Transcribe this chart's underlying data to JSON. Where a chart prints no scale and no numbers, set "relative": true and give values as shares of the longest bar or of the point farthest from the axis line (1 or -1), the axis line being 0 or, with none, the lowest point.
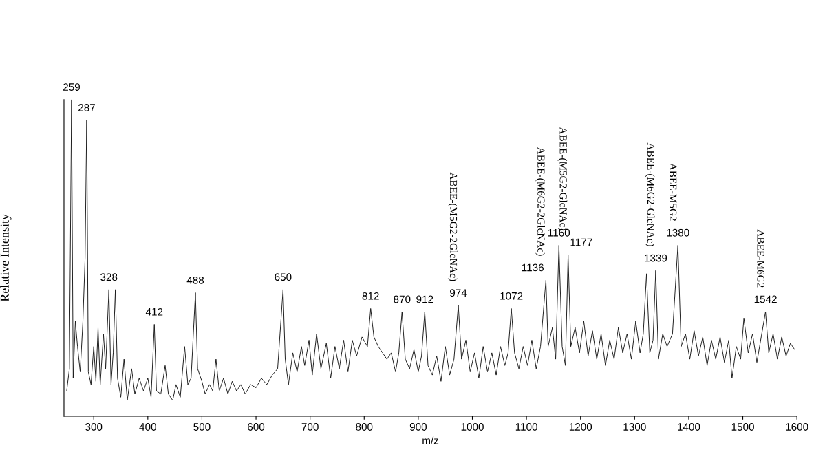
{
  "chart_data": {
    "type": "line",
    "relative": true,
    "xlabel": "m/z",
    "ylabel": "Relative Intensity",
    "xlim": [
      245,
      1600
    ],
    "xticks": [
      300,
      400,
      500,
      600,
      700,
      800,
      900,
      1000,
      1100,
      1200,
      1300,
      1400,
      1500,
      1600
    ],
    "tick_labels": "x",
    "grid": false,
    "legend": false,
    "marker": "none",
    "line_style": "solid",
    "series": [
      {
        "color": "#1a1a1a",
        "x": [
          250,
          255,
          259,
          262,
          266,
          270,
          275,
          280,
          284,
          287,
          290,
          295,
          300,
          304,
          308,
          312,
          318,
          322,
          328,
          332,
          336,
          340,
          344,
          350,
          356,
          362,
          370,
          376,
          384,
          392,
          400,
          406,
          412,
          416,
          424,
          432,
          438,
          446,
          452,
          460,
          468,
          474,
          480,
          488,
          492,
          500,
          506,
          514,
          520,
          526,
          532,
          540,
          548,
          556,
          564,
          572,
          580,
          590,
          600,
          610,
          620,
          630,
          640,
          650,
          654,
          660,
          668,
          676,
          684,
          690,
          698,
          704,
          712,
          720,
          730,
          738,
          746,
          754,
          762,
          770,
          778,
          786,
          796,
          806,
          812,
          818,
          826,
          834,
          842,
          850,
          858,
          864,
          870,
          876,
          884,
          892,
          900,
          906,
          912,
          918,
          926,
          934,
          942,
          950,
          958,
          966,
          974,
          980,
          988,
          996,
          1004,
          1012,
          1020,
          1028,
          1036,
          1044,
          1052,
          1060,
          1066,
          1072,
          1078,
          1086,
          1094,
          1102,
          1110,
          1118,
          1126,
          1136,
          1140,
          1148,
          1154,
          1160,
          1166,
          1172,
          1177,
          1182,
          1190,
          1198,
          1206,
          1214,
          1222,
          1230,
          1238,
          1246,
          1254,
          1262,
          1270,
          1278,
          1286,
          1294,
          1302,
          1310,
          1316,
          1322,
          1328,
          1334,
          1339,
          1344,
          1352,
          1360,
          1370,
          1380,
          1386,
          1394,
          1402,
          1410,
          1418,
          1426,
          1434,
          1442,
          1450,
          1458,
          1466,
          1474,
          1480,
          1488,
          1496,
          1502,
          1510,
          1518,
          1526,
          1534,
          1542,
          1548,
          1556,
          1564,
          1572,
          1580,
          1588,
          1596
        ],
        "values": [
          0.08,
          0.15,
          1.0,
          0.12,
          0.3,
          0.22,
          0.14,
          0.3,
          0.5,
          0.935,
          0.14,
          0.1,
          0.22,
          0.11,
          0.28,
          0.1,
          0.26,
          0.15,
          0.4,
          0.1,
          0.2,
          0.4,
          0.12,
          0.06,
          0.18,
          0.05,
          0.15,
          0.07,
          0.12,
          0.08,
          0.12,
          0.06,
          0.29,
          0.08,
          0.07,
          0.16,
          0.07,
          0.05,
          0.1,
          0.06,
          0.22,
          0.1,
          0.12,
          0.39,
          0.15,
          0.11,
          0.07,
          0.1,
          0.08,
          0.18,
          0.08,
          0.12,
          0.07,
          0.11,
          0.08,
          0.1,
          0.07,
          0.1,
          0.09,
          0.12,
          0.1,
          0.13,
          0.15,
          0.4,
          0.18,
          0.1,
          0.2,
          0.14,
          0.22,
          0.16,
          0.24,
          0.13,
          0.26,
          0.15,
          0.23,
          0.12,
          0.22,
          0.15,
          0.24,
          0.14,
          0.24,
          0.19,
          0.25,
          0.22,
          0.34,
          0.25,
          0.22,
          0.2,
          0.18,
          0.2,
          0.14,
          0.2,
          0.33,
          0.18,
          0.15,
          0.21,
          0.14,
          0.19,
          0.33,
          0.16,
          0.13,
          0.19,
          0.11,
          0.22,
          0.13,
          0.18,
          0.35,
          0.18,
          0.24,
          0.14,
          0.2,
          0.12,
          0.22,
          0.14,
          0.2,
          0.13,
          0.22,
          0.16,
          0.2,
          0.34,
          0.2,
          0.15,
          0.22,
          0.16,
          0.24,
          0.15,
          0.22,
          0.43,
          0.22,
          0.28,
          0.18,
          0.54,
          0.22,
          0.16,
          0.51,
          0.22,
          0.28,
          0.2,
          0.3,
          0.19,
          0.27,
          0.18,
          0.26,
          0.16,
          0.24,
          0.18,
          0.28,
          0.2,
          0.26,
          0.18,
          0.3,
          0.2,
          0.26,
          0.45,
          0.2,
          0.24,
          0.46,
          0.18,
          0.26,
          0.22,
          0.26,
          0.54,
          0.22,
          0.26,
          0.18,
          0.27,
          0.19,
          0.25,
          0.16,
          0.24,
          0.18,
          0.25,
          0.17,
          0.24,
          0.12,
          0.22,
          0.18,
          0.31,
          0.2,
          0.26,
          0.17,
          0.25,
          0.33,
          0.2,
          0.26,
          0.18,
          0.25,
          0.19,
          0.23,
          0.21
        ]
      }
    ],
    "annotations": [
      {
        "text": "259",
        "x": 259,
        "y": 1.0
      },
      {
        "text": "287",
        "x": 287,
        "y": 0.935
      },
      {
        "text": "328",
        "x": 328,
        "y": 0.4
      },
      {
        "text": "412",
        "x": 412,
        "y": 0.29
      },
      {
        "text": "488",
        "x": 488,
        "y": 0.39
      },
      {
        "text": "650",
        "x": 650,
        "y": 0.4
      },
      {
        "text": "812",
        "x": 812,
        "y": 0.34
      },
      {
        "text": "870",
        "x": 870,
        "y": 0.33
      },
      {
        "text": "912",
        "x": 912,
        "y": 0.33
      },
      {
        "text": "974",
        "x": 974,
        "y": 0.35
      },
      {
        "text": "1072",
        "x": 1072,
        "y": 0.34
      },
      {
        "text": "1136",
        "x": 1136,
        "y": 0.43
      },
      {
        "text": "1160",
        "x": 1160,
        "y": 0.54
      },
      {
        "text": "1177",
        "x": 1177,
        "y": 0.51
      },
      {
        "text": "1339",
        "x": 1339,
        "y": 0.46
      },
      {
        "text": "1380",
        "x": 1380,
        "y": 0.54
      },
      {
        "text": "1542",
        "x": 1542,
        "y": 0.33
      },
      {
        "text": "ABEE-(M5G2-2GlcNAc)",
        "x": 974,
        "y": 0.35
      },
      {
        "text": "ABEE-(M6G2-2GlcNAc)",
        "x": 1136,
        "y": 0.43
      },
      {
        "text": "ABEE-(M5G2-GlcNAc)",
        "x": 1177,
        "y": 0.51
      },
      {
        "text": "ABEE-(M6G2-GlcNAc)",
        "x": 1339,
        "y": 0.46
      },
      {
        "text": "ABEE-M5G2",
        "x": 1380,
        "y": 0.54
      },
      {
        "text": "ABEE-M6G2",
        "x": 1542,
        "y": 0.33
      }
    ]
  }
}
